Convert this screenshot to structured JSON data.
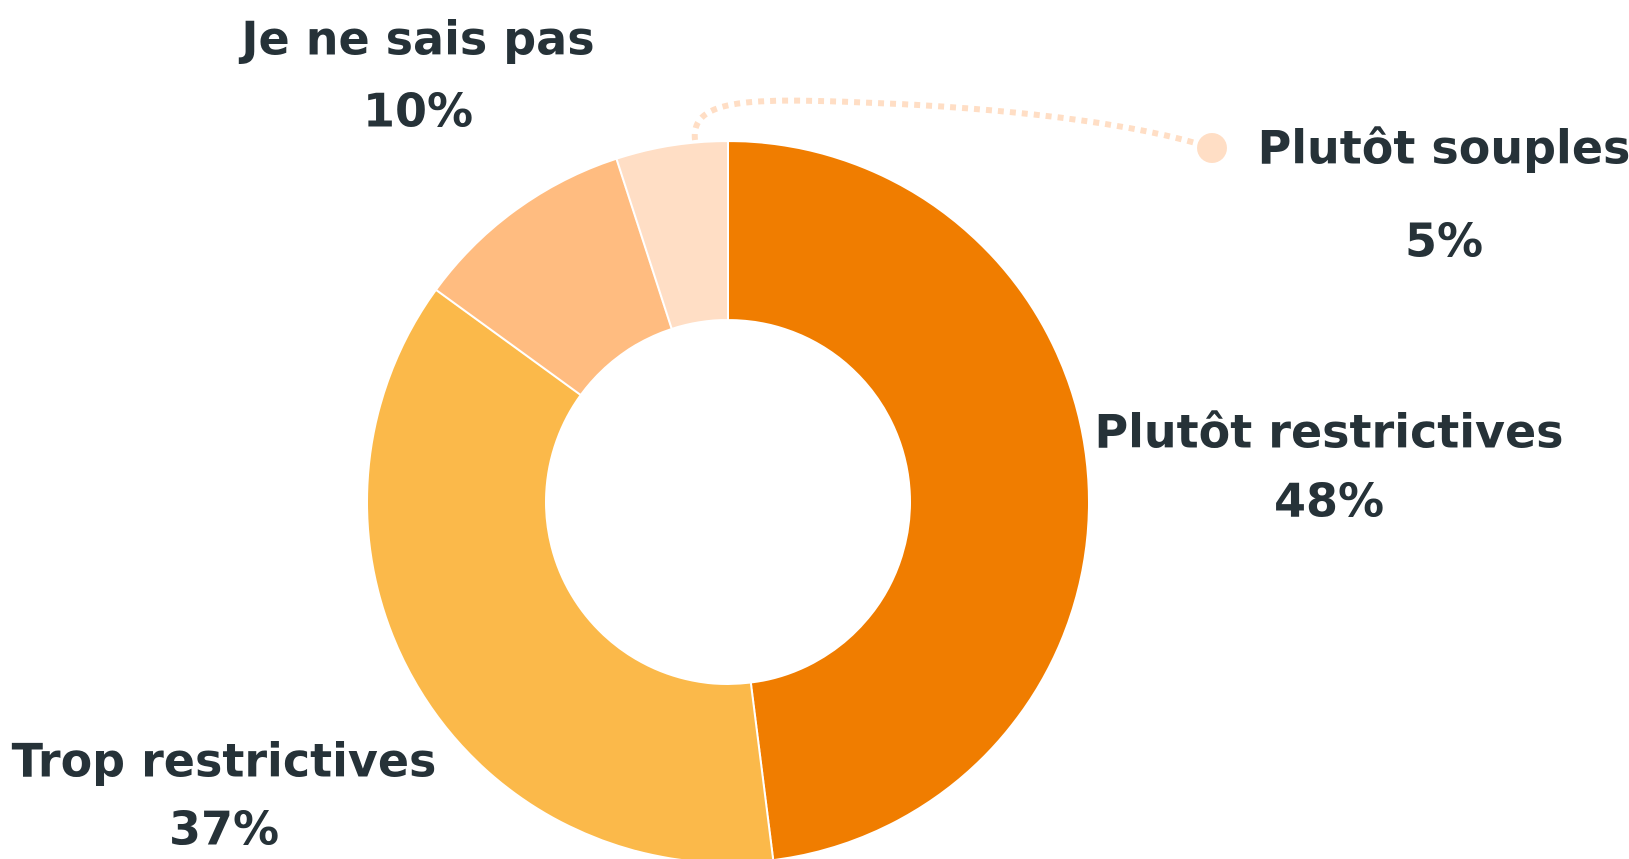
{
  "chart_data": {
    "type": "pie",
    "donut": true,
    "categories": [
      "Plutôt restrictives",
      "Trop restrictives",
      "Je ne sais pas",
      "Plutôt souples"
    ],
    "values": [
      48,
      37,
      10,
      5
    ],
    "value_labels": [
      "48%",
      "37%",
      "10%",
      "5%"
    ],
    "colors": [
      "#f07d00",
      "#fbb94a",
      "#ffbc80",
      "#ffdec5"
    ]
  }
}
